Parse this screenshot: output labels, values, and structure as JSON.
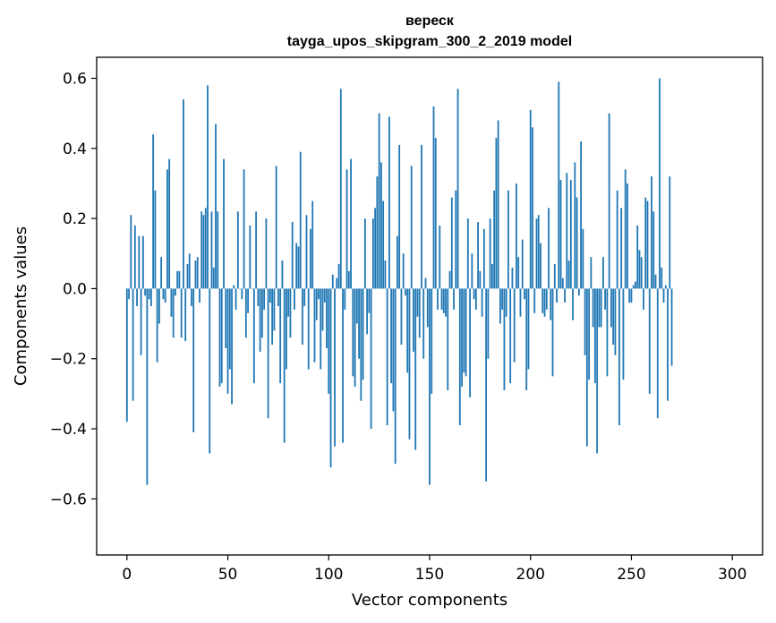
{
  "chart_data": {
    "type": "bar",
    "title": "вереск",
    "subtitle": "tayga_upos_skipgram_300_2_2019 model",
    "xlabel": "Vector components",
    "ylabel": "Components values",
    "xlim": [
      -15,
      315
    ],
    "ylim": [
      -0.76,
      0.66
    ],
    "xticks": [
      0,
      50,
      100,
      150,
      200,
      250,
      300
    ],
    "xtick_labels": [
      "0",
      "50",
      "100",
      "150",
      "200",
      "250",
      "300"
    ],
    "yticks": [
      -0.6,
      -0.4,
      -0.2,
      0.0,
      0.2,
      0.4,
      0.6
    ],
    "ytick_labels": [
      "−0.6",
      "−0.4",
      "−0.2",
      "0.0",
      "0.2",
      "0.4",
      "0.6"
    ],
    "grid": false,
    "bar_color": "#1f77b4",
    "x_start": 0,
    "values": [
      -0.38,
      -0.03,
      0.21,
      -0.32,
      0.18,
      -0.05,
      0.15,
      -0.19,
      0.15,
      -0.02,
      -0.56,
      -0.03,
      -0.05,
      0.44,
      0.28,
      -0.21,
      -0.1,
      0.09,
      -0.03,
      -0.04,
      0.34,
      0.37,
      -0.08,
      -0.14,
      -0.02,
      0.05,
      0.05,
      -0.14,
      0.54,
      -0.15,
      0.07,
      0.1,
      -0.05,
      -0.41,
      0.08,
      0.09,
      -0.04,
      0.22,
      0.21,
      0.23,
      0.58,
      -0.47,
      0.22,
      0.06,
      0.47,
      0.22,
      -0.28,
      -0.27,
      0.37,
      -0.17,
      -0.3,
      -0.23,
      -0.33,
      0.01,
      -0.06,
      0.22,
      0.0,
      -0.03,
      0.34,
      -0.14,
      -0.07,
      0.18,
      0.0,
      -0.27,
      0.22,
      -0.05,
      -0.18,
      -0.14,
      -0.06,
      0.2,
      -0.37,
      -0.04,
      -0.16,
      -0.12,
      0.35,
      -0.05,
      -0.27,
      0.08,
      -0.44,
      -0.23,
      -0.08,
      -0.14,
      0.19,
      -0.06,
      0.13,
      0.12,
      0.39,
      -0.16,
      -0.05,
      0.21,
      -0.23,
      0.17,
      0.25,
      -0.21,
      -0.09,
      -0.03,
      -0.23,
      -0.12,
      -0.04,
      -0.17,
      -0.3,
      -0.51,
      0.04,
      -0.45,
      0.03,
      0.07,
      0.57,
      -0.44,
      -0.06,
      0.34,
      0.05,
      0.37,
      -0.25,
      -0.28,
      -0.1,
      -0.2,
      -0.32,
      -0.26,
      0.2,
      -0.13,
      -0.07,
      -0.4,
      0.2,
      0.23,
      0.32,
      0.5,
      0.36,
      0.25,
      0.08,
      -0.39,
      0.49,
      -0.27,
      -0.35,
      -0.5,
      0.15,
      0.41,
      -0.16,
      0.1,
      -0.02,
      -0.24,
      -0.43,
      0.35,
      -0.18,
      -0.46,
      -0.08,
      -0.14,
      0.41,
      -0.2,
      0.03,
      -0.11,
      -0.56,
      -0.3,
      0.52,
      0.43,
      -0.06,
      0.18,
      -0.06,
      -0.07,
      -0.08,
      -0.29,
      0.05,
      0.26,
      -0.06,
      0.28,
      0.57,
      -0.39,
      -0.28,
      -0.24,
      -0.25,
      0.2,
      -0.31,
      0.1,
      -0.03,
      -0.06,
      0.19,
      0.05,
      -0.08,
      0.17,
      -0.55,
      -0.2,
      0.2,
      0.07,
      0.28,
      0.43,
      0.48,
      -0.1,
      -0.06,
      -0.29,
      -0.08,
      0.28,
      -0.27,
      0.06,
      -0.21,
      0.3,
      0.09,
      -0.08,
      0.14,
      -0.03,
      -0.29,
      -0.23,
      0.51,
      0.46,
      -0.07,
      0.2,
      0.21,
      0.13,
      -0.07,
      -0.08,
      -0.06,
      0.23,
      -0.09,
      -0.25,
      0.07,
      -0.04,
      0.59,
      0.31,
      0.03,
      -0.04,
      0.33,
      0.08,
      0.31,
      -0.09,
      0.36,
      0.26,
      -0.02,
      0.42,
      0.17,
      -0.19,
      -0.45,
      -0.26,
      0.09,
      -0.11,
      -0.27,
      -0.47,
      -0.11,
      -0.11,
      0.09,
      -0.06,
      -0.25,
      0.5,
      -0.11,
      -0.16,
      -0.19,
      0.28,
      -0.39,
      0.23,
      -0.26,
      0.34,
      0.3,
      -0.04,
      -0.04,
      0.01,
      0.02,
      0.18,
      0.11,
      0.09,
      -0.06,
      0.26,
      0.25,
      -0.3,
      0.32,
      0.22,
      0.04,
      -0.37,
      0.6,
      0.06,
      -0.04,
      0.01,
      -0.32,
      0.32,
      -0.22
    ]
  }
}
